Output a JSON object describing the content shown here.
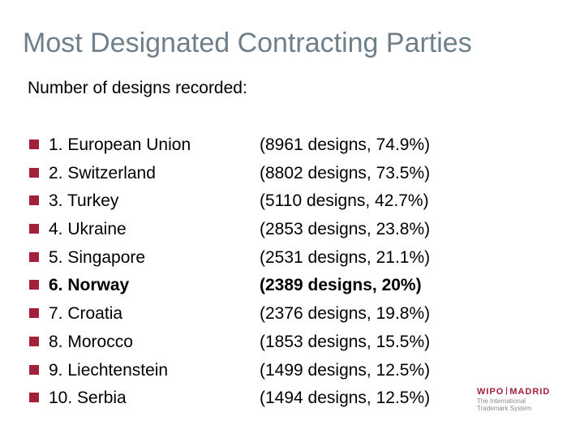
{
  "title": "Most Designated Contracting Parties",
  "subtitle": "Number of designs recorded:",
  "items": [
    {
      "name": "1. European Union",
      "stats": "(8961 designs, 74.9%)"
    },
    {
      "name": "2. Switzerland",
      "stats": "(8802 designs, 73.5%)"
    },
    {
      "name": "3. Turkey",
      "stats": "(5110 designs, 42.7%)"
    },
    {
      "name": "4. Ukraine",
      "stats": "(2853 designs, 23.8%)"
    },
    {
      "name": "5. Singapore",
      "stats": "(2531 designs, 21.1%)"
    },
    {
      "name": "6. Norway",
      "stats": "(2389 designs, 20%)"
    },
    {
      "name": "7. Croatia",
      "stats": "(2376 designs, 19.8%)"
    },
    {
      "name": "8. Morocco",
      "stats": "(1853 designs, 15.5%)"
    },
    {
      "name": "9. Liechtenstein",
      "stats": "(1499 designs, 12.5%)"
    },
    {
      "name": "10. Serbia",
      "stats": "(1494 designs, 12.5%)"
    }
  ],
  "logo": {
    "left": "WIPO",
    "right": "MADRID",
    "line1": "The International",
    "line2": "Trademark System"
  },
  "colors": {
    "bullet": "#a3203a",
    "title": "#6f7f8a"
  }
}
